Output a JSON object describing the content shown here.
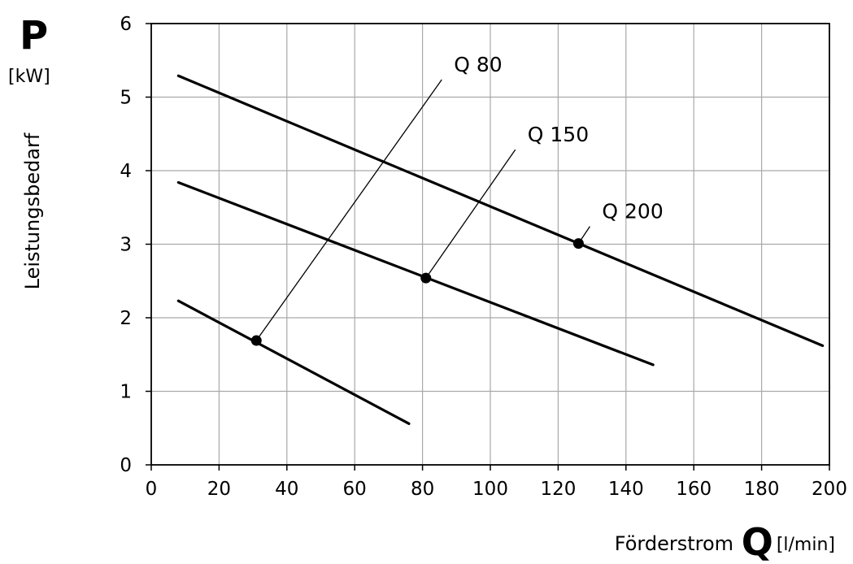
{
  "y_axis": {
    "symbol": "P",
    "unit": "[kW]",
    "label": "Leistungsbedarf"
  },
  "x_axis": {
    "label": "Förderstrom",
    "symbol": "Q",
    "unit": "[l/min]"
  },
  "chart_data": {
    "type": "line",
    "xlim": [
      0,
      200
    ],
    "ylim": [
      0,
      6
    ],
    "xticks": [
      "0",
      "20",
      "40",
      "60",
      "80",
      "100",
      "120",
      "140",
      "160",
      "180",
      "200"
    ],
    "yticks": [
      "0",
      "1",
      "2",
      "3",
      "4",
      "5",
      "6"
    ],
    "grid": true,
    "series": [
      {
        "name": "Q 80",
        "x": [
          8,
          76
        ],
        "y": [
          2.23,
          0.56
        ],
        "marker": {
          "x": 31,
          "y": 1.69
        }
      },
      {
        "name": "Q 150",
        "x": [
          8,
          148
        ],
        "y": [
          3.84,
          1.36
        ],
        "marker": {
          "x": 81,
          "y": 2.54
        }
      },
      {
        "name": "Q 200",
        "x": [
          8,
          198
        ],
        "y": [
          5.29,
          1.62
        ],
        "marker": {
          "x": 126,
          "y": 3.01
        }
      }
    ]
  }
}
